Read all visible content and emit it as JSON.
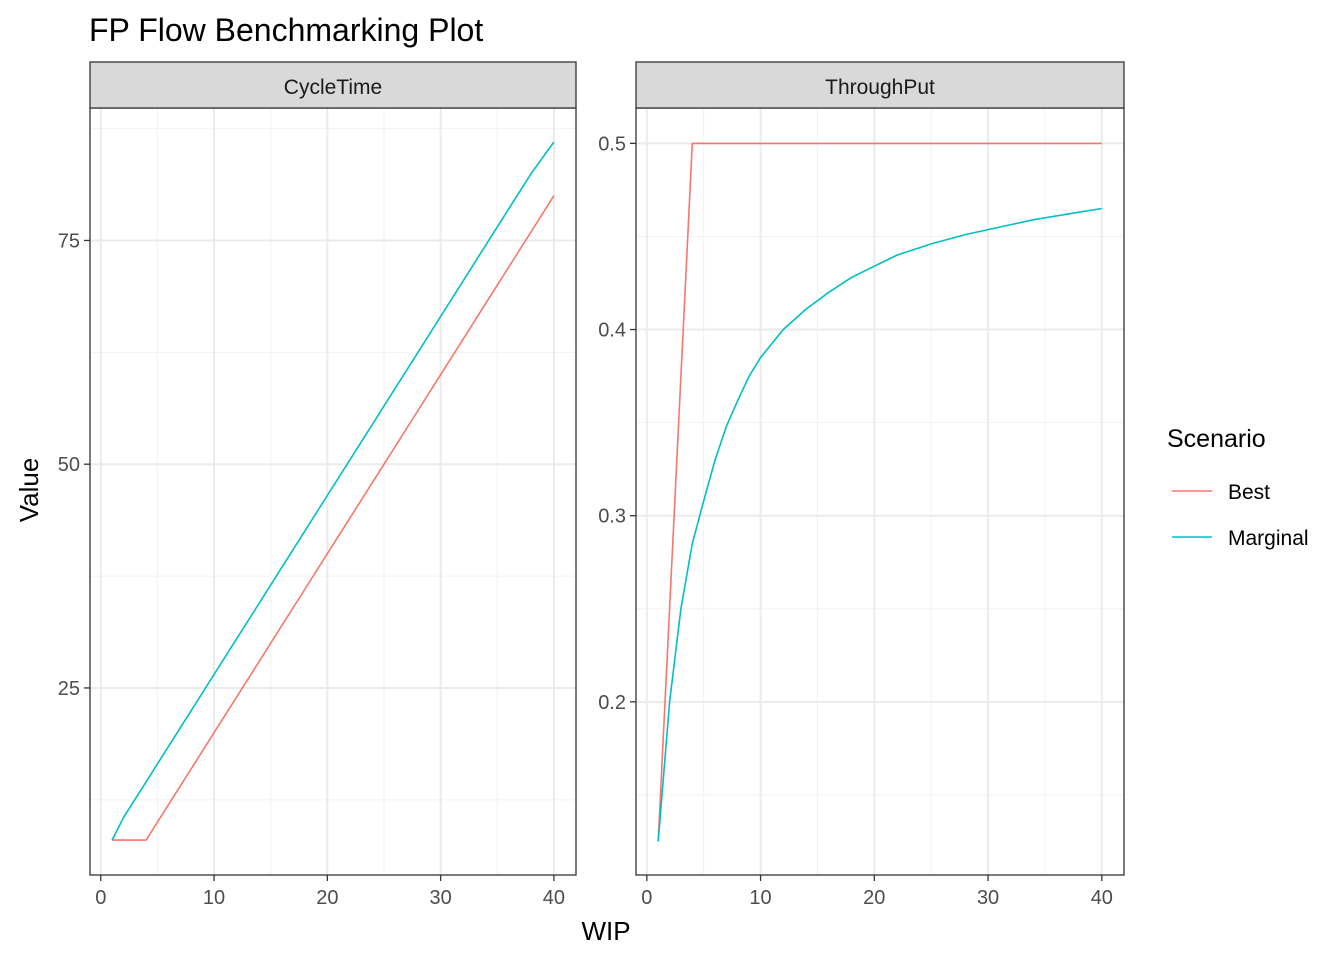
{
  "title": "FP Flow Benchmarking Plot",
  "xlabel": "WIP",
  "ylabel": "Value",
  "legend": {
    "title": "Scenario",
    "items": [
      {
        "label": "Best",
        "color": "#F8766D"
      },
      {
        "label": "Marginal",
        "color": "#00BFC4"
      }
    ]
  },
  "chart_data": [
    {
      "type": "line",
      "panel": "CycleTime",
      "xlim": [
        -0.95,
        41.95
      ],
      "ylim": [
        4.1,
        89.8
      ],
      "x_ticks": [
        0,
        10,
        20,
        30,
        40
      ],
      "y_ticks": [
        25,
        50,
        75
      ],
      "grid": true,
      "series": [
        {
          "name": "Best",
          "color": "#F8766D",
          "points": [
            [
              1,
              8
            ],
            [
              2,
              8
            ],
            [
              3,
              8
            ],
            [
              4,
              8
            ],
            [
              5,
              10
            ],
            [
              6,
              12
            ],
            [
              7,
              14
            ],
            [
              8,
              16
            ],
            [
              9,
              18
            ],
            [
              10,
              20
            ],
            [
              12,
              24
            ],
            [
              14,
              28
            ],
            [
              16,
              32
            ],
            [
              18,
              36
            ],
            [
              20,
              40
            ],
            [
              22,
              44
            ],
            [
              24,
              48
            ],
            [
              26,
              52
            ],
            [
              28,
              56
            ],
            [
              30,
              60
            ],
            [
              32,
              64
            ],
            [
              34,
              68
            ],
            [
              36,
              72
            ],
            [
              38,
              76
            ],
            [
              40,
              80
            ]
          ]
        },
        {
          "name": "Marginal",
          "color": "#00BFC4",
          "points": [
            [
              1,
              8
            ],
            [
              2,
              10.5
            ],
            [
              3,
              12.5
            ],
            [
              4,
              14.5
            ],
            [
              5,
              16.5
            ],
            [
              6,
              18.5
            ],
            [
              8,
              22.5
            ],
            [
              10,
              26.5
            ],
            [
              12,
              30.5
            ],
            [
              14,
              34.5
            ],
            [
              16,
              38.5
            ],
            [
              18,
              42.5
            ],
            [
              20,
              46.5
            ],
            [
              22,
              50.5
            ],
            [
              24,
              54.5
            ],
            [
              26,
              58.5
            ],
            [
              28,
              62.5
            ],
            [
              30,
              66.5
            ],
            [
              32,
              70.5
            ],
            [
              34,
              74.5
            ],
            [
              36,
              78.5
            ],
            [
              38,
              82.5
            ],
            [
              40,
              86
            ]
          ]
        }
      ]
    },
    {
      "type": "line",
      "panel": "ThroughPut",
      "xlim": [
        -0.95,
        41.95
      ],
      "ylim": [
        0.107,
        0.519
      ],
      "x_ticks": [
        0,
        10,
        20,
        30,
        40
      ],
      "y_ticks": [
        0.2,
        0.3,
        0.4,
        0.5
      ],
      "y_tick_labels": [
        "0.2",
        "0.3",
        "0.4",
        "0.5"
      ],
      "grid": true,
      "series": [
        {
          "name": "Best",
          "color": "#F8766D",
          "points": [
            [
              1,
              0.125
            ],
            [
              4,
              0.5
            ],
            [
              40,
              0.5
            ]
          ]
        },
        {
          "name": "Marginal",
          "color": "#00BFC4",
          "points": [
            [
              1,
              0.125
            ],
            [
              2,
              0.2
            ],
            [
              3,
              0.25
            ],
            [
              4,
              0.285
            ],
            [
              5,
              0.308
            ],
            [
              6,
              0.33
            ],
            [
              7,
              0.348
            ],
            [
              8,
              0.362
            ],
            [
              9,
              0.375
            ],
            [
              10,
              0.385
            ],
            [
              12,
              0.4
            ],
            [
              14,
              0.411
            ],
            [
              16,
              0.42
            ],
            [
              18,
              0.428
            ],
            [
              20,
              0.434
            ],
            [
              22,
              0.44
            ],
            [
              25,
              0.446
            ],
            [
              28,
              0.451
            ],
            [
              31,
              0.455
            ],
            [
              34,
              0.459
            ],
            [
              37,
              0.462
            ],
            [
              40,
              0.465
            ]
          ]
        }
      ]
    }
  ]
}
